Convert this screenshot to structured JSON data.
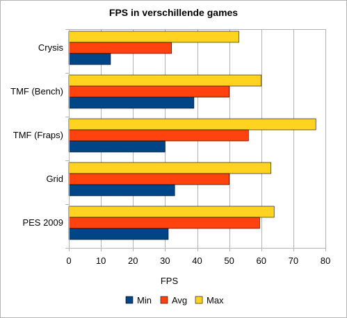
{
  "chart_data": {
    "type": "bar",
    "orientation": "horizontal",
    "title": "FPS in verschillende games",
    "xlabel": "FPS",
    "ylabel": "",
    "xlim": [
      0,
      80
    ],
    "xticks": [
      0,
      10,
      20,
      30,
      40,
      50,
      60,
      70,
      80
    ],
    "grid": true,
    "legend_position": "bottom",
    "categories": [
      "Crysis",
      "TMF (Bench)",
      "TMF (Fraps)",
      "Grid",
      "PES 2009"
    ],
    "series": [
      {
        "name": "Min",
        "color": "#004586",
        "values": [
          13,
          39,
          30,
          33,
          31
        ]
      },
      {
        "name": "Avg",
        "color": "#ff420e",
        "values": [
          32,
          50,
          56,
          50,
          59.5
        ]
      },
      {
        "name": "Max",
        "color": "#ffd320",
        "values": [
          53,
          60,
          77,
          63,
          64
        ]
      }
    ]
  }
}
